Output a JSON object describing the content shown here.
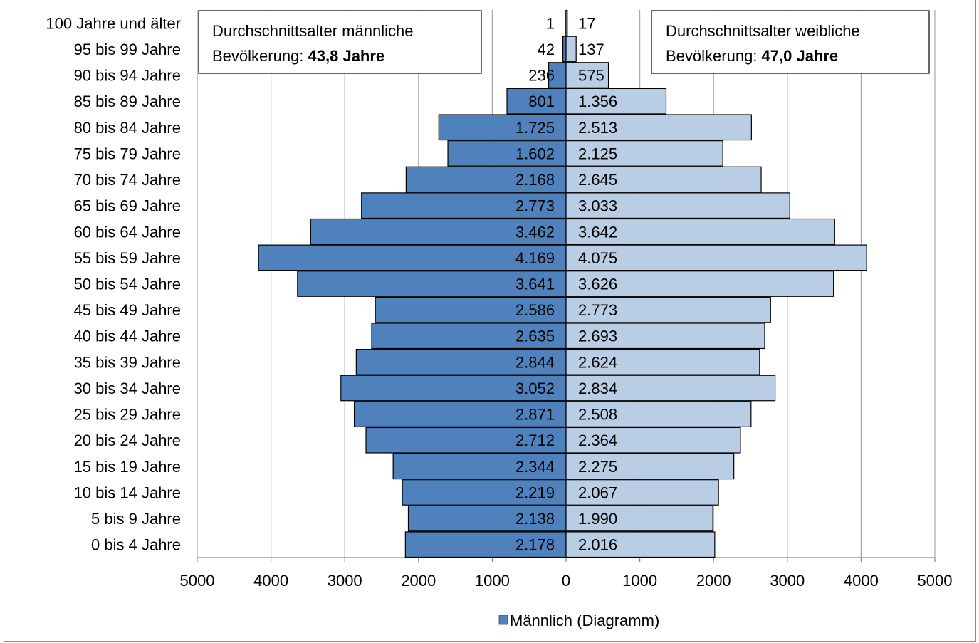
{
  "chart_data": {
    "type": "bar",
    "orientation": "horizontal",
    "layout": "population-pyramid",
    "categories": [
      "0 bis 4 Jahre",
      "5 bis 9 Jahre",
      "10 bis 14 Jahre",
      "15 bis 19 Jahre",
      "20 bis 24 Jahre",
      "25 bis 29 Jahre",
      "30 bis 34 Jahre",
      "35 bis 39 Jahre",
      "40 bis 44 Jahre",
      "45 bis 49 Jahre",
      "50 bis 54 Jahre",
      "55 bis 59 Jahre",
      "60 bis 64 Jahre",
      "65 bis 69 Jahre",
      "70 bis 74 Jahre",
      "75 bis 79 Jahre",
      "80 bis 84 Jahre",
      "85 bis 89 Jahre",
      "90 bis 94 Jahre",
      "95 bis 99 Jahre",
      "100 Jahre und älter"
    ],
    "series": [
      {
        "key": "male",
        "values": [
          2178,
          2138,
          2219,
          2344,
          2712,
          2871,
          3052,
          2844,
          2635,
          2586,
          3641,
          4169,
          3462,
          2773,
          2168,
          1602,
          1725,
          801,
          236,
          42,
          1
        ],
        "labels": [
          "2.178",
          "2.138",
          "2.219",
          "2.344",
          "2.712",
          "2.871",
          "3.052",
          "2.844",
          "2.635",
          "2.586",
          "3.641",
          "4.169",
          "3.462",
          "2.773",
          "2.168",
          "1.602",
          "1.725",
          "801",
          "236",
          "42",
          "1"
        ],
        "color": "#4f81bd",
        "side": "left"
      },
      {
        "key": "female",
        "values": [
          2016,
          1990,
          2067,
          2275,
          2364,
          2508,
          2834,
          2624,
          2693,
          2773,
          3626,
          4075,
          3642,
          3033,
          2645,
          2125,
          2513,
          1356,
          575,
          137,
          17
        ],
        "labels": [
          "2.016",
          "1.990",
          "2.067",
          "2.275",
          "2.364",
          "2.508",
          "2.834",
          "2.624",
          "2.693",
          "2.773",
          "3.626",
          "4.075",
          "3.642",
          "3.033",
          "2.645",
          "2.125",
          "2.513",
          "1.356",
          "575",
          "137",
          "17"
        ],
        "color": "#b9cde5",
        "side": "right"
      }
    ],
    "xlim": [
      -5000,
      5000
    ],
    "x_ticks": [
      -5000,
      -4000,
      -3000,
      -2000,
      -1000,
      0,
      1000,
      2000,
      3000,
      4000,
      5000
    ],
    "x_tick_labels": [
      "5000",
      "4000",
      "3000",
      "2000",
      "1000",
      "0",
      "1000",
      "2000",
      "3000",
      "4000",
      "5000"
    ],
    "grid": "vertical",
    "legend": {
      "position": "bottom",
      "entries": [
        {
          "label": "Männlich (Diagramm)",
          "color": "#4f81bd"
        }
      ]
    },
    "annotations": {
      "male_box": {
        "line1": "Durchschnittsalter männliche",
        "line2_prefix": "Bevölkerung: ",
        "line2_value": "43,8 Jahre",
        "position": "top-left"
      },
      "female_box": {
        "line1": "Durchschnittsalter weibliche",
        "line2_prefix": "Bevölkerung: ",
        "line2_value": "47,0 Jahre",
        "position": "top-right"
      }
    }
  }
}
